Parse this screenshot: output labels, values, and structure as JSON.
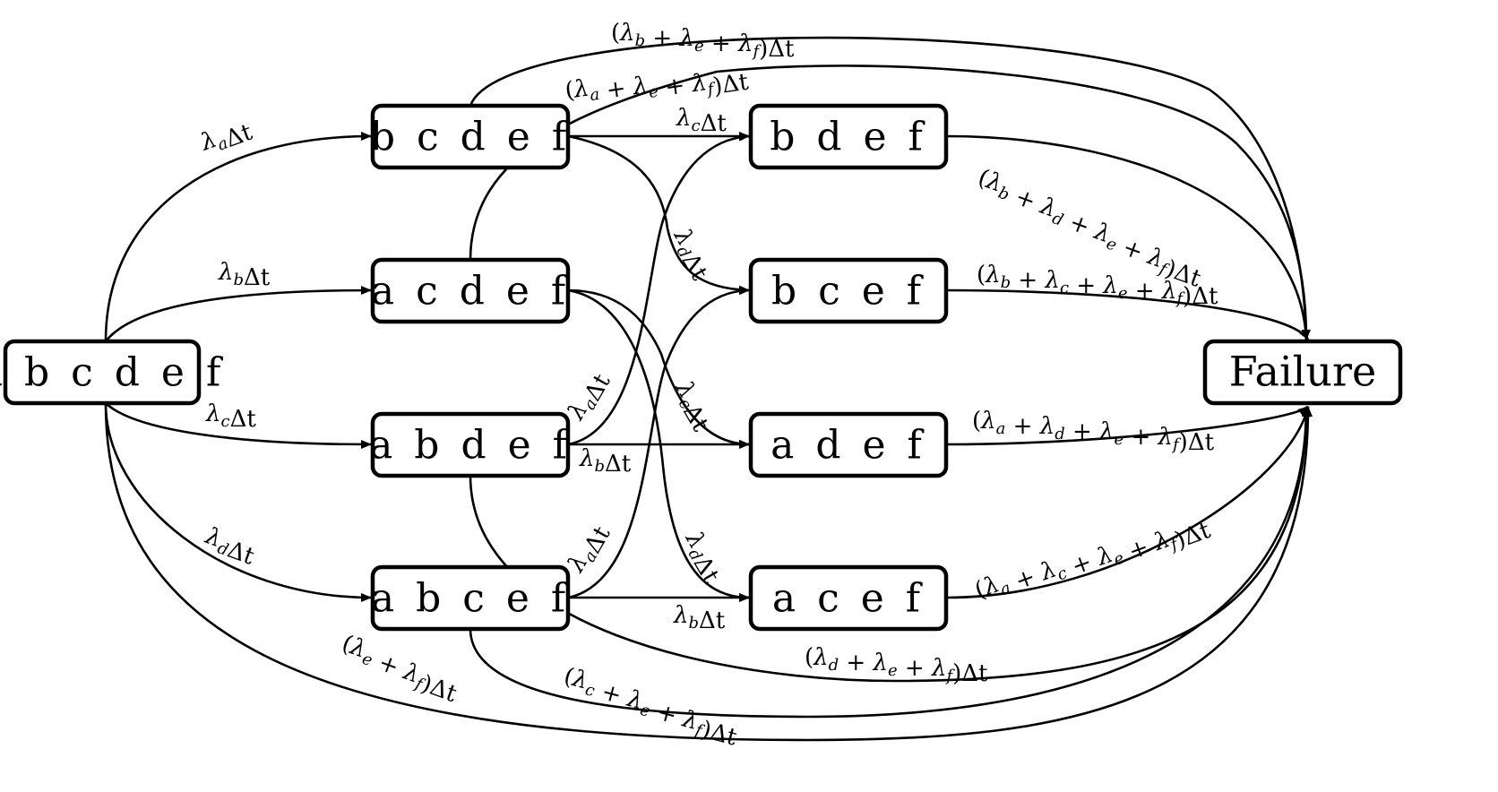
{
  "states": [
    {
      "id": "s0",
      "label": "a b c d e f"
    },
    {
      "id": "s1",
      "label": "b c d e f"
    },
    {
      "id": "s2",
      "label": "a c d e f"
    },
    {
      "id": "s3",
      "label": "a b d e f"
    },
    {
      "id": "s4",
      "label": "a b c e f"
    },
    {
      "id": "s5",
      "label": "b d e f"
    },
    {
      "id": "s6",
      "label": "b c e f"
    },
    {
      "id": "s7",
      "label": "a d e f"
    },
    {
      "id": "s8",
      "label": "a c e f"
    },
    {
      "id": "fail",
      "label": "Failure"
    }
  ],
  "transitions": [
    {
      "from": "s0",
      "to": "s1",
      "rates": [
        "a"
      ]
    },
    {
      "from": "s0",
      "to": "s2",
      "rates": [
        "b"
      ]
    },
    {
      "from": "s0",
      "to": "s3",
      "rates": [
        "c"
      ]
    },
    {
      "from": "s0",
      "to": "s4",
      "rates": [
        "d"
      ]
    },
    {
      "from": "s0",
      "to": "fail",
      "rates": [
        "e",
        "f"
      ]
    },
    {
      "from": "s1",
      "to": "s5",
      "rates": [
        "c"
      ]
    },
    {
      "from": "s1",
      "to": "s6",
      "rates": [
        "d"
      ]
    },
    {
      "from": "s1",
      "to": "fail",
      "rates": [
        "b",
        "e",
        "f"
      ]
    },
    {
      "from": "s2",
      "to": "s7",
      "rates": [
        "c"
      ]
    },
    {
      "from": "s2",
      "to": "s8",
      "rates": [
        "d"
      ]
    },
    {
      "from": "s2",
      "to": "fail",
      "rates": [
        "a",
        "e",
        "f"
      ]
    },
    {
      "from": "s3",
      "to": "s5",
      "rates": [
        "a"
      ]
    },
    {
      "from": "s3",
      "to": "s7",
      "rates": [
        "b"
      ]
    },
    {
      "from": "s3",
      "to": "fail",
      "rates": [
        "d",
        "e",
        "f"
      ]
    },
    {
      "from": "s4",
      "to": "s6",
      "rates": [
        "a"
      ]
    },
    {
      "from": "s4",
      "to": "s8",
      "rates": [
        "b"
      ]
    },
    {
      "from": "s4",
      "to": "fail",
      "rates": [
        "c",
        "e",
        "f"
      ]
    },
    {
      "from": "s5",
      "to": "fail",
      "rates": [
        "b",
        "d",
        "e",
        "f"
      ]
    },
    {
      "from": "s6",
      "to": "fail",
      "rates": [
        "b",
        "c",
        "e",
        "f"
      ]
    },
    {
      "from": "s7",
      "to": "fail",
      "rates": [
        "a",
        "d",
        "e",
        "f"
      ]
    },
    {
      "from": "s8",
      "to": "fail",
      "rates": [
        "a",
        "c",
        "e",
        "f"
      ]
    }
  ],
  "symbols": {
    "rate": "λ",
    "plus": "+",
    "dt": "Δt",
    "open": "(",
    "close": ")"
  }
}
